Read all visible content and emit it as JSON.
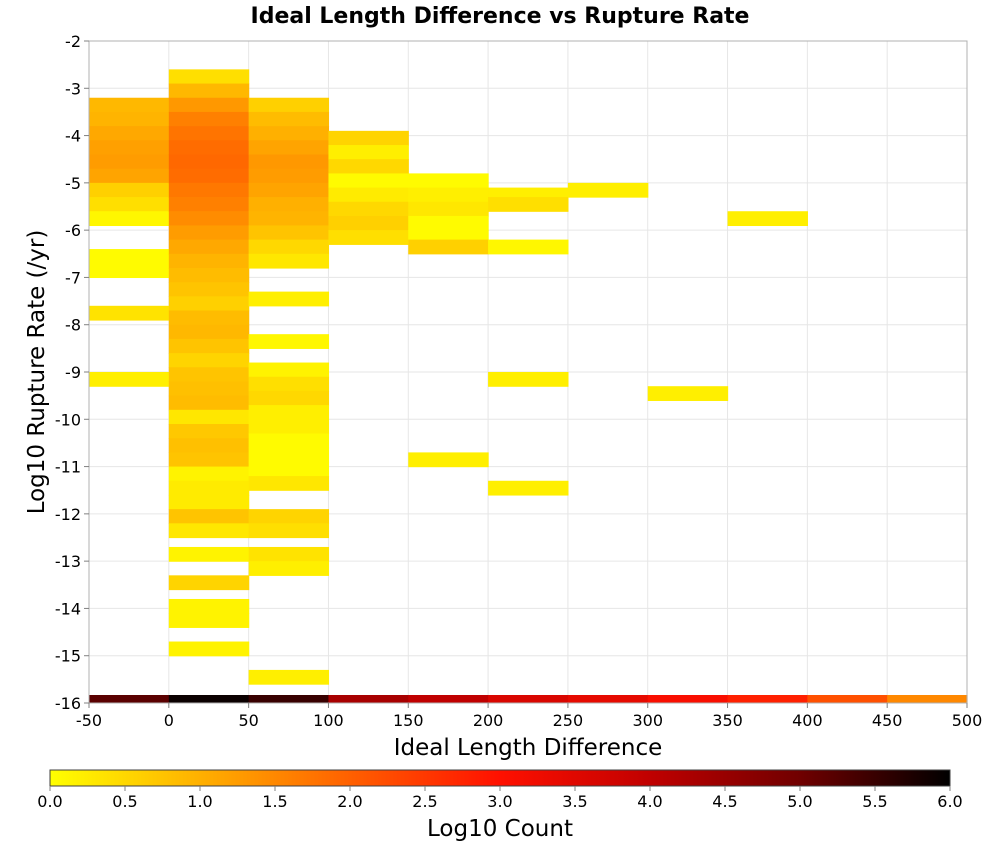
{
  "chart_data": {
    "type": "heatmap",
    "title": "Ideal Length Difference vs Rupture Rate",
    "xlabel": "Ideal Length Difference",
    "ylabel": "Log10 Rupture Rate (/yr)",
    "xlim": [
      -50,
      500
    ],
    "ylim": [
      -16,
      -2
    ],
    "x_ticks": [
      "-50",
      "0",
      "50",
      "100",
      "150",
      "200",
      "250",
      "300",
      "350",
      "400",
      "450",
      "500"
    ],
    "y_ticks": [
      "-2",
      "-3",
      "-4",
      "-5",
      "-6",
      "-7",
      "-8",
      "-9",
      "-10",
      "-11",
      "-12",
      "-13",
      "-14",
      "-15",
      "-16"
    ],
    "grid": true,
    "colorbar": {
      "label": "Log10 Count",
      "min": 0,
      "max": 6,
      "ticks": [
        "0.0",
        "0.5",
        "1.0",
        "1.5",
        "2.0",
        "2.5",
        "3.0",
        "3.5",
        "4.0",
        "4.5",
        "5.0",
        "5.5",
        "6.0"
      ],
      "colors": [
        "#ffff00",
        "#ffb000",
        "#ff6000",
        "#ff1000",
        "#c00000",
        "#700000",
        "#000000"
      ]
    },
    "bin_width_x": 50,
    "bin_height_y": 0.3,
    "cells": [
      [
        -50,
        -3.35,
        0.9
      ],
      [
        -50,
        -3.65,
        0.95
      ],
      [
        -50,
        -3.95,
        1.1
      ],
      [
        -50,
        -4.25,
        1.2
      ],
      [
        -50,
        -4.55,
        1.25
      ],
      [
        -50,
        -4.85,
        1.15
      ],
      [
        -50,
        -5.15,
        0.6
      ],
      [
        -50,
        -5.45,
        0.4
      ],
      [
        -50,
        -5.75,
        0.1
      ],
      [
        -50,
        -6.55,
        0.05
      ],
      [
        -50,
        -6.85,
        0.05
      ],
      [
        -50,
        -7.75,
        0.35
      ],
      [
        -50,
        -9.15,
        0.2
      ],
      [
        0,
        -2.75,
        0.4
      ],
      [
        0,
        -3.05,
        0.9
      ],
      [
        0,
        -3.35,
        1.3
      ],
      [
        0,
        -3.65,
        1.6
      ],
      [
        0,
        -3.95,
        1.75
      ],
      [
        0,
        -4.25,
        1.85
      ],
      [
        0,
        -4.55,
        1.9
      ],
      [
        0,
        -4.85,
        1.85
      ],
      [
        0,
        -5.15,
        1.7
      ],
      [
        0,
        -5.45,
        1.6
      ],
      [
        0,
        -5.75,
        1.45
      ],
      [
        0,
        -6.05,
        1.25
      ],
      [
        0,
        -6.35,
        1.1
      ],
      [
        0,
        -6.65,
        0.95
      ],
      [
        0,
        -6.95,
        0.85
      ],
      [
        0,
        -7.25,
        0.75
      ],
      [
        0,
        -7.55,
        0.6
      ],
      [
        0,
        -7.85,
        0.85
      ],
      [
        0,
        -8.15,
        0.9
      ],
      [
        0,
        -8.45,
        0.75
      ],
      [
        0,
        -8.75,
        0.55
      ],
      [
        0,
        -9.05,
        0.75
      ],
      [
        0,
        -9.35,
        0.8
      ],
      [
        0,
        -9.65,
        0.85
      ],
      [
        0,
        -9.95,
        0.3
      ],
      [
        0,
        -10.25,
        0.7
      ],
      [
        0,
        -10.55,
        0.8
      ],
      [
        0,
        -10.85,
        0.75
      ],
      [
        0,
        -11.15,
        0.15
      ],
      [
        0,
        -11.45,
        0.25
      ],
      [
        0,
        -11.75,
        0.25
      ],
      [
        0,
        -12.05,
        0.75
      ],
      [
        0,
        -12.35,
        0.3
      ],
      [
        0,
        -12.85,
        0.15
      ],
      [
        0,
        -13.45,
        0.55
      ],
      [
        0,
        -13.95,
        0.15
      ],
      [
        0,
        -14.25,
        0.15
      ],
      [
        0,
        -14.85,
        0.15
      ],
      [
        50,
        -3.35,
        0.6
      ],
      [
        50,
        -3.65,
        0.85
      ],
      [
        50,
        -3.95,
        1.0
      ],
      [
        50,
        -4.25,
        1.15
      ],
      [
        50,
        -4.55,
        1.3
      ],
      [
        50,
        -4.85,
        1.25
      ],
      [
        50,
        -5.15,
        1.15
      ],
      [
        50,
        -5.45,
        1.0
      ],
      [
        50,
        -5.75,
        0.95
      ],
      [
        50,
        -6.05,
        0.75
      ],
      [
        50,
        -6.35,
        0.5
      ],
      [
        50,
        -6.65,
        0.3
      ],
      [
        50,
        -7.45,
        0.2
      ],
      [
        50,
        -8.35,
        0.1
      ],
      [
        50,
        -8.95,
        0.15
      ],
      [
        50,
        -9.25,
        0.4
      ],
      [
        50,
        -9.55,
        0.5
      ],
      [
        50,
        -9.85,
        0.2
      ],
      [
        50,
        -10.15,
        0.2
      ],
      [
        50,
        -10.45,
        0.05
      ],
      [
        50,
        -10.75,
        0.05
      ],
      [
        50,
        -11.05,
        0.05
      ],
      [
        50,
        -11.35,
        0.3
      ],
      [
        50,
        -12.05,
        0.55
      ],
      [
        50,
        -12.35,
        0.4
      ],
      [
        50,
        -12.85,
        0.35
      ],
      [
        50,
        -13.15,
        0.2
      ],
      [
        50,
        -15.45,
        0.2
      ],
      [
        100,
        -4.05,
        0.55
      ],
      [
        100,
        -4.35,
        0.2
      ],
      [
        100,
        -4.65,
        0.5
      ],
      [
        100,
        -4.95,
        0.05
      ],
      [
        100,
        -5.25,
        0.25
      ],
      [
        100,
        -5.55,
        0.5
      ],
      [
        100,
        -5.85,
        0.6
      ],
      [
        100,
        -6.15,
        0.4
      ],
      [
        150,
        -4.95,
        0.05
      ],
      [
        150,
        -5.25,
        0.2
      ],
      [
        150,
        -5.55,
        0.3
      ],
      [
        150,
        -5.85,
        0.05
      ],
      [
        150,
        -6.15,
        0.05
      ],
      [
        150,
        -6.35,
        0.6
      ],
      [
        150,
        -10.85,
        0.2
      ],
      [
        200,
        -5.25,
        0.2
      ],
      [
        200,
        -5.45,
        0.4
      ],
      [
        200,
        -6.35,
        0.1
      ],
      [
        200,
        -9.15,
        0.2
      ],
      [
        200,
        -11.45,
        0.2
      ],
      [
        250,
        -5.15,
        0.2
      ],
      [
        300,
        -9.45,
        0.2
      ],
      [
        350,
        -5.75,
        0.2
      ]
    ],
    "bottom_strip": [
      [
        -50,
        5.2
      ],
      [
        0,
        5.9
      ],
      [
        50,
        5.5
      ],
      [
        100,
        4.3
      ],
      [
        150,
        4.0
      ],
      [
        200,
        3.6
      ],
      [
        250,
        3.4
      ],
      [
        300,
        3.1
      ],
      [
        350,
        2.8
      ],
      [
        400,
        2.2
      ],
      [
        450,
        1.5
      ]
    ]
  }
}
